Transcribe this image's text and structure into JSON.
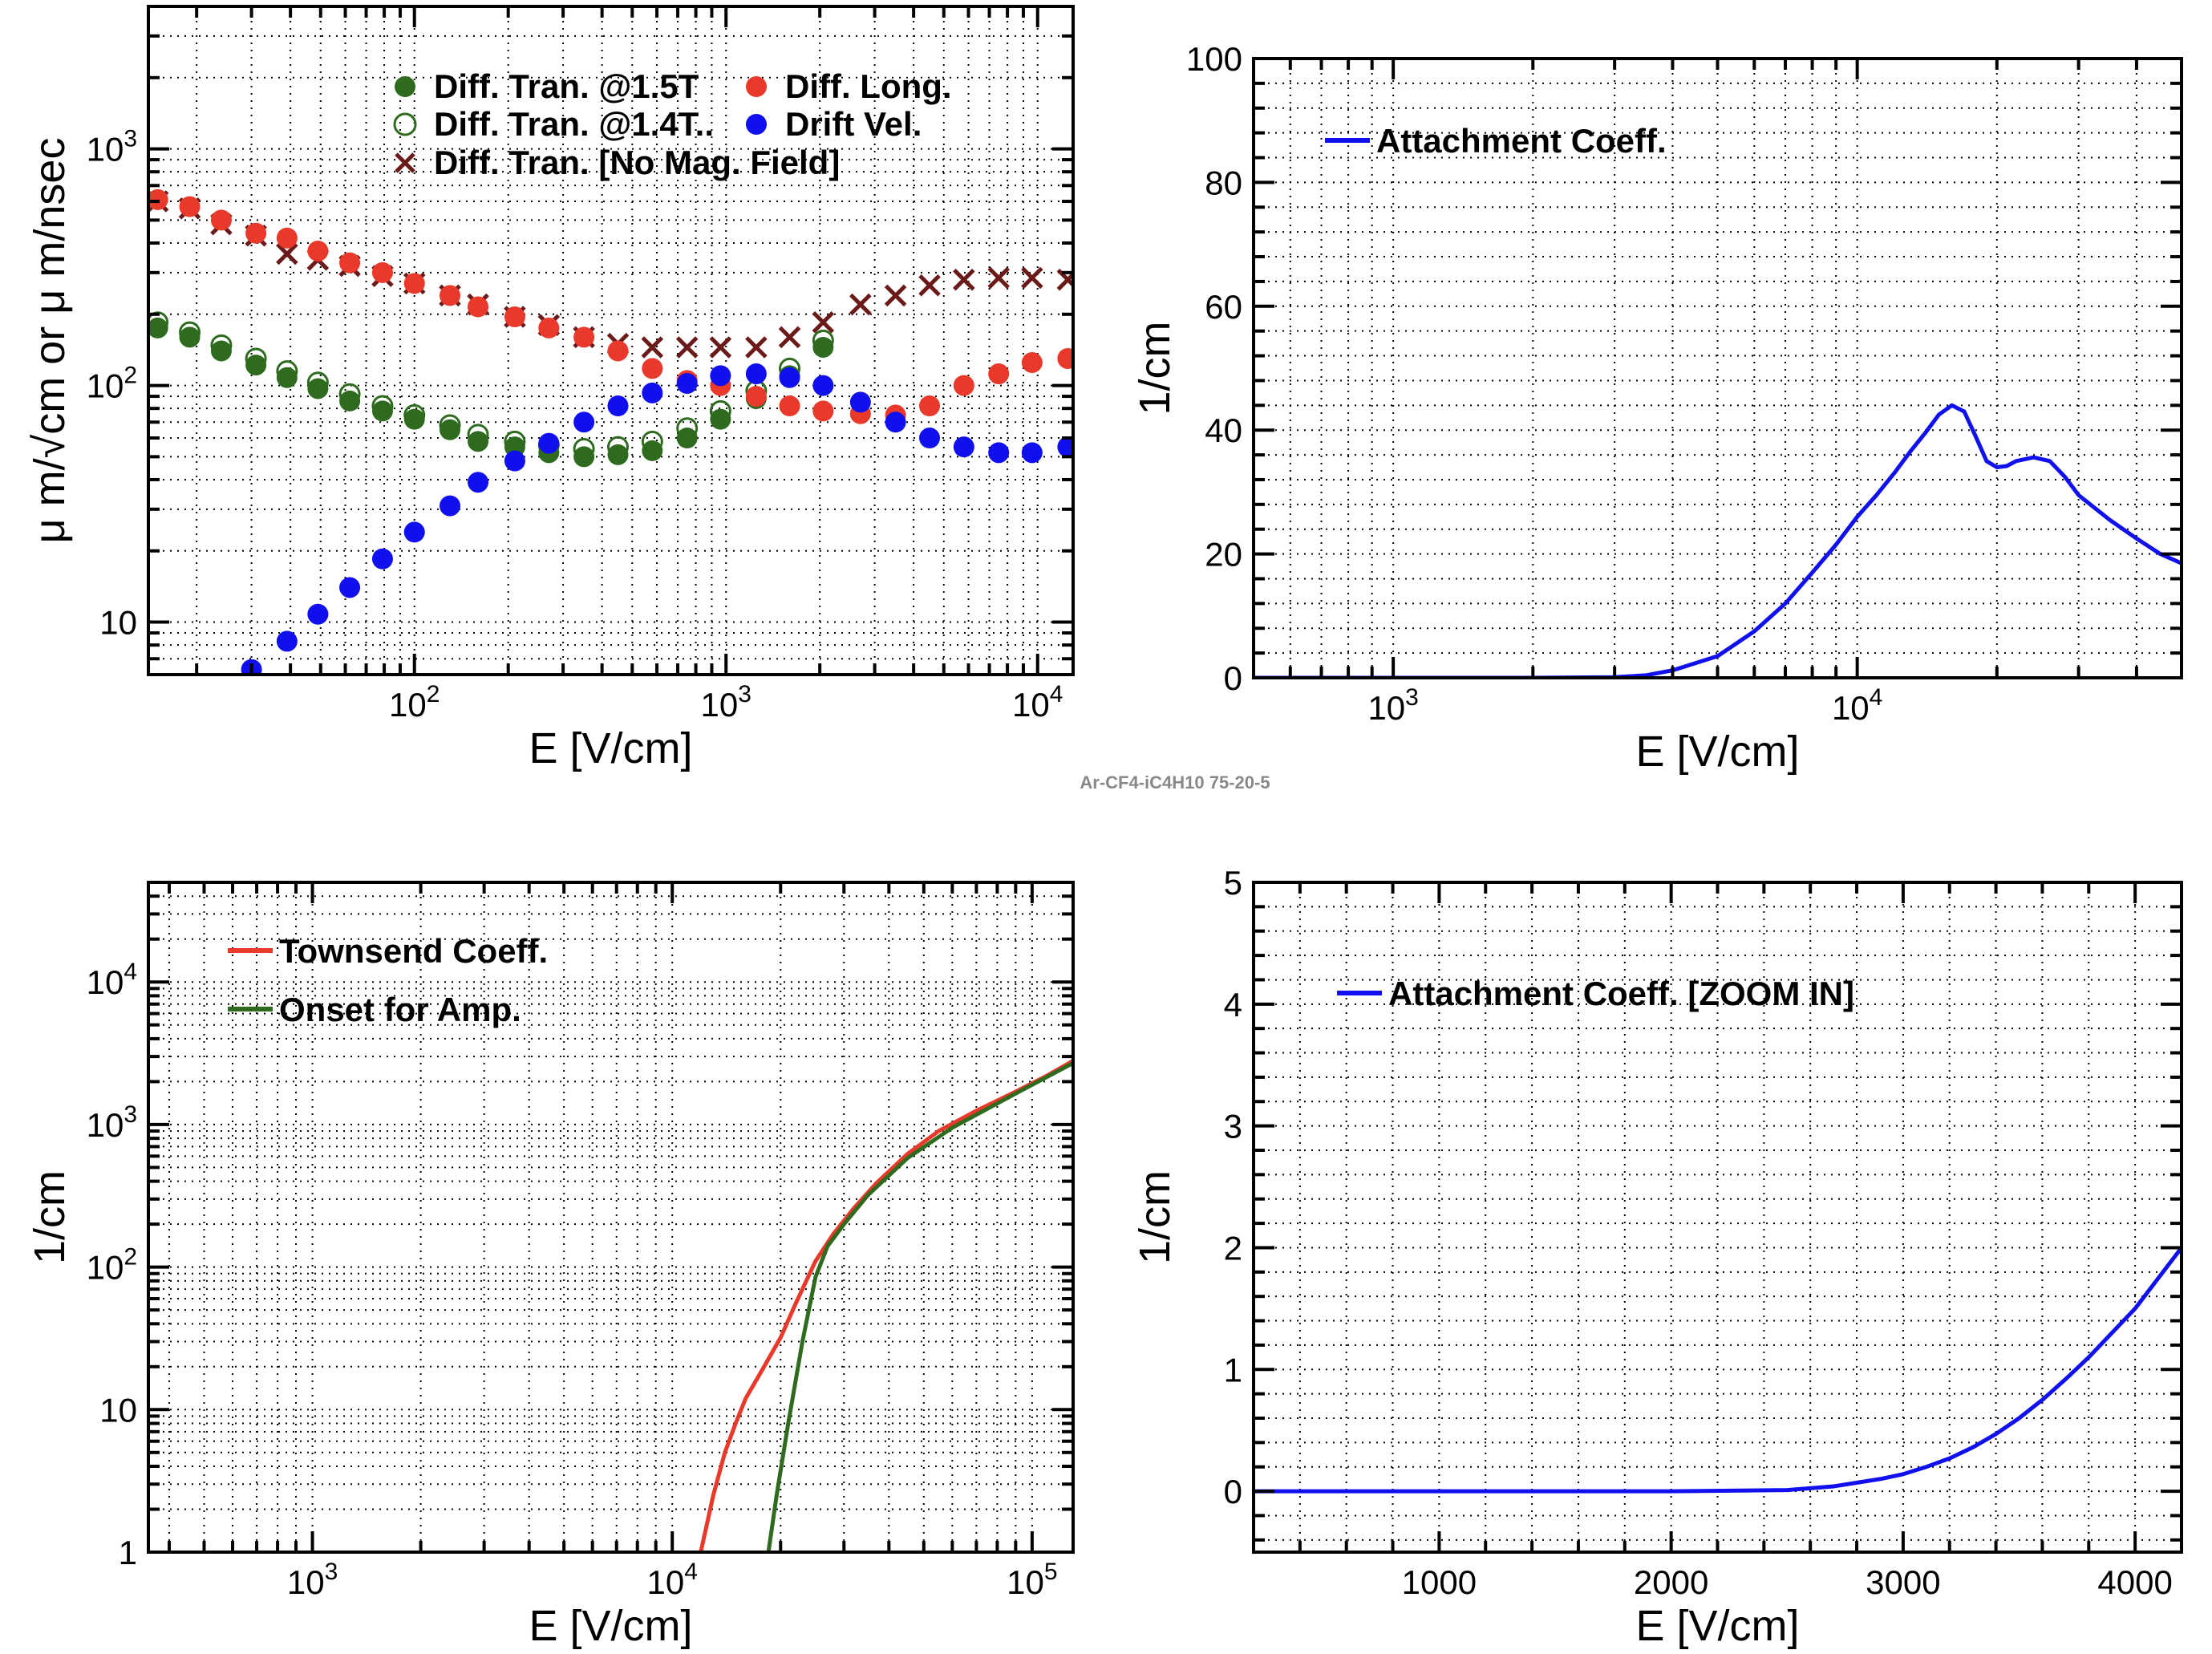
{
  "figure": {
    "footer": "Ar-CF4-iC4H10 75-20-5"
  },
  "chart_data": [
    {
      "id": "p1",
      "type": "scatter",
      "title": "",
      "xlabel": "E [V/cm]",
      "ylabel": "μ m/√cm or μ m/nsec",
      "xscale": "log",
      "yscale": "log",
      "xlim": [
        14,
        13000
      ],
      "ylim": [
        6,
        4000
      ],
      "x_ticks": [
        {
          "v": 100,
          "e": "2"
        },
        {
          "v": 1000,
          "e": "3"
        },
        {
          "v": 10000,
          "e": "4"
        }
      ],
      "y_ticks": [
        {
          "v": 10,
          "label": "10"
        },
        {
          "v": 100,
          "e": "2"
        },
        {
          "v": 1000,
          "e": "3"
        }
      ],
      "grid": true,
      "legend_position": "top",
      "series": [
        {
          "name": "Diff. Tran. @1.5T",
          "marker": "filled-circle",
          "color": "#2e6b1f",
          "x": [
            15,
            19,
            24,
            31,
            39,
            49,
            62,
            79,
            100,
            130,
            160,
            210,
            270,
            350,
            450,
            580,
            750,
            960,
            1250,
            1600,
            2050
          ],
          "y": [
            175,
            160,
            140,
            122,
            108,
            97,
            86,
            78,
            72,
            65,
            58,
            55,
            52,
            50,
            51,
            53,
            60,
            72,
            88,
            110,
            145
          ]
        },
        {
          "name": "Diff. Tran. @1.4T..",
          "marker": "open-circle",
          "color": "#2e6b1f",
          "x": [
            15,
            19,
            24,
            31,
            39,
            49,
            62,
            79,
            100,
            130,
            160,
            210,
            270,
            350,
            450,
            580,
            750,
            960,
            1250,
            1600,
            2050
          ],
          "y": [
            185,
            168,
            148,
            130,
            115,
            103,
            92,
            82,
            75,
            68,
            62,
            58,
            56,
            54,
            55,
            58,
            66,
            78,
            95,
            118,
            155
          ]
        },
        {
          "name": "Diff. Tran. [No Mag. Field]",
          "marker": "cross",
          "color": "#6b1a1a",
          "x": [
            15,
            19,
            24,
            31,
            39,
            49,
            62,
            79,
            100,
            130,
            160,
            210,
            270,
            350,
            450,
            580,
            750,
            960,
            1250,
            1600,
            2050,
            2700,
            3500,
            4500,
            5800,
            7500,
            9600,
            12500
          ],
          "y": [
            600,
            560,
            480,
            430,
            360,
            340,
            320,
            290,
            270,
            240,
            220,
            195,
            180,
            160,
            150,
            145,
            145,
            145,
            145,
            160,
            185,
            220,
            240,
            265,
            280,
            285,
            285,
            280
          ]
        },
        {
          "name": "Diff. Long.",
          "marker": "filled-circle",
          "color": "#e8392a",
          "x": [
            15,
            19,
            24,
            31,
            39,
            49,
            62,
            79,
            100,
            130,
            160,
            210,
            270,
            350,
            450,
            580,
            750,
            960,
            1250,
            1600,
            2050,
            2700,
            3500,
            4500,
            5800,
            7500,
            9600,
            12500
          ],
          "y": [
            610,
            570,
            500,
            440,
            420,
            370,
            330,
            300,
            270,
            240,
            215,
            195,
            175,
            160,
            140,
            118,
            105,
            100,
            90,
            82,
            78,
            76,
            75,
            82,
            100,
            112,
            125,
            130
          ]
        },
        {
          "name": "Drift Vel.",
          "marker": "filled-circle",
          "color": "#1010ee",
          "x": [
            30,
            39,
            49,
            62,
            79,
            100,
            130,
            160,
            210,
            270,
            350,
            450,
            580,
            750,
            960,
            1250,
            1600,
            2050,
            2700,
            3500,
            4500,
            5800,
            7500,
            9600,
            12500
          ],
          "y": [
            6.3,
            8.3,
            10.8,
            14,
            18.5,
            24,
            31,
            39,
            48,
            57,
            70,
            82,
            93,
            102,
            110,
            112,
            108,
            100,
            85,
            70,
            60,
            55,
            52,
            52,
            55
          ]
        }
      ]
    },
    {
      "id": "p2",
      "type": "line",
      "title": "",
      "xlabel": "E [V/cm]",
      "ylabel": "1/cm",
      "xscale": "log",
      "yscale": "linear",
      "xlim": [
        500,
        50000
      ],
      "ylim": [
        0,
        100
      ],
      "x_ticks": [
        {
          "v": 1000,
          "e": "3"
        },
        {
          "v": 10000,
          "e": "4"
        }
      ],
      "y_ticks": [
        {
          "v": 0,
          "label": "0"
        },
        {
          "v": 20,
          "label": "20"
        },
        {
          "v": 40,
          "label": "40"
        },
        {
          "v": 60,
          "label": "60"
        },
        {
          "v": 80,
          "label": "80"
        },
        {
          "v": 100,
          "label": "100"
        }
      ],
      "grid": true,
      "legend_position": "top-left",
      "series": [
        {
          "name": "Attachment Coeff.",
          "color": "#1010ee",
          "x": [
            500,
            1000,
            2000,
            3000,
            3500,
            4000,
            5000,
            6000,
            7000,
            8000,
            9000,
            10000,
            11000,
            12000,
            13000,
            14000,
            15000,
            16000,
            17000,
            18000,
            19000,
            20000,
            21000,
            22000,
            24000,
            26000,
            28000,
            30000,
            35000,
            40000,
            45000,
            50000
          ],
          "y": [
            0,
            0,
            0,
            0.1,
            0.4,
            1.2,
            3.5,
            7.5,
            12,
            17,
            21.5,
            26,
            29.5,
            33,
            36.5,
            39.5,
            42.5,
            44,
            43,
            39,
            35,
            34,
            34.2,
            35,
            35.6,
            35,
            32.5,
            29.5,
            25.5,
            22.5,
            20,
            18.5
          ]
        }
      ]
    },
    {
      "id": "p3",
      "type": "line",
      "title": "",
      "xlabel": "E [V/cm]",
      "ylabel": "1/cm",
      "xscale": "log",
      "yscale": "log",
      "xlim": [
        350,
        130000
      ],
      "ylim": [
        1,
        50000
      ],
      "x_ticks": [
        {
          "v": 1000,
          "e": "3"
        },
        {
          "v": 10000,
          "e": "4"
        },
        {
          "v": 100000,
          "e": "5"
        }
      ],
      "y_ticks": [
        {
          "v": 1,
          "label": "1"
        },
        {
          "v": 10,
          "label": "10"
        },
        {
          "v": 100,
          "e": "2"
        },
        {
          "v": 1000,
          "e": "3"
        },
        {
          "v": 10000,
          "e": "4"
        }
      ],
      "grid": true,
      "legend_position": "top-left",
      "series": [
        {
          "name": "Townsend Coeff.",
          "color": "#e8392a",
          "x": [
            12000,
            13000,
            14000,
            15000,
            16000,
            18000,
            20000,
            22000,
            25000,
            28000,
            32000,
            37000,
            45000,
            55000,
            70000,
            90000,
            110000,
            130000
          ],
          "y": [
            1,
            2.5,
            5,
            8,
            12,
            20,
            32,
            55,
            110,
            170,
            260,
            390,
            620,
            900,
            1250,
            1700,
            2200,
            2800
          ]
        },
        {
          "name": "Onset for Amp.",
          "color": "#2e6b1f",
          "x": [
            18500,
            19500,
            21000,
            23000,
            25000,
            27000,
            30000,
            35000,
            45000,
            60000,
            90000,
            130000
          ],
          "y": [
            1,
            2.5,
            8,
            30,
            85,
            140,
            200,
            320,
            580,
            950,
            1650,
            2700
          ]
        }
      ]
    },
    {
      "id": "p4",
      "type": "line",
      "title": "",
      "xlabel": "E [V/cm]",
      "ylabel": "1/cm",
      "xscale": "linear",
      "yscale": "linear",
      "xlim": [
        200,
        4200
      ],
      "ylim": [
        -0.5,
        5
      ],
      "x_ticks": [
        {
          "v": 1000,
          "label": "1000"
        },
        {
          "v": 2000,
          "label": "2000"
        },
        {
          "v": 3000,
          "label": "3000"
        },
        {
          "v": 4000,
          "label": "4000"
        }
      ],
      "y_ticks": [
        {
          "v": 0,
          "label": "0"
        },
        {
          "v": 1,
          "label": "1"
        },
        {
          "v": 2,
          "label": "2"
        },
        {
          "v": 3,
          "label": "3"
        },
        {
          "v": 4,
          "label": "4"
        },
        {
          "v": 5,
          "label": "5"
        }
      ],
      "grid": true,
      "legend_position": "top-center",
      "series": [
        {
          "name": "Attachment Coeff. [ZOOM IN]",
          "color": "#1010ee",
          "x": [
            200,
            1000,
            1500,
            2000,
            2300,
            2500,
            2700,
            2900,
            3000,
            3100,
            3200,
            3300,
            3400,
            3500,
            3600,
            3700,
            3800,
            3900,
            4000,
            4100,
            4200
          ],
          "y": [
            0,
            0,
            0,
            0,
            0.005,
            0.01,
            0.04,
            0.1,
            0.14,
            0.2,
            0.27,
            0.36,
            0.47,
            0.6,
            0.75,
            0.92,
            1.1,
            1.3,
            1.5,
            1.75,
            2.0
          ]
        }
      ]
    }
  ]
}
